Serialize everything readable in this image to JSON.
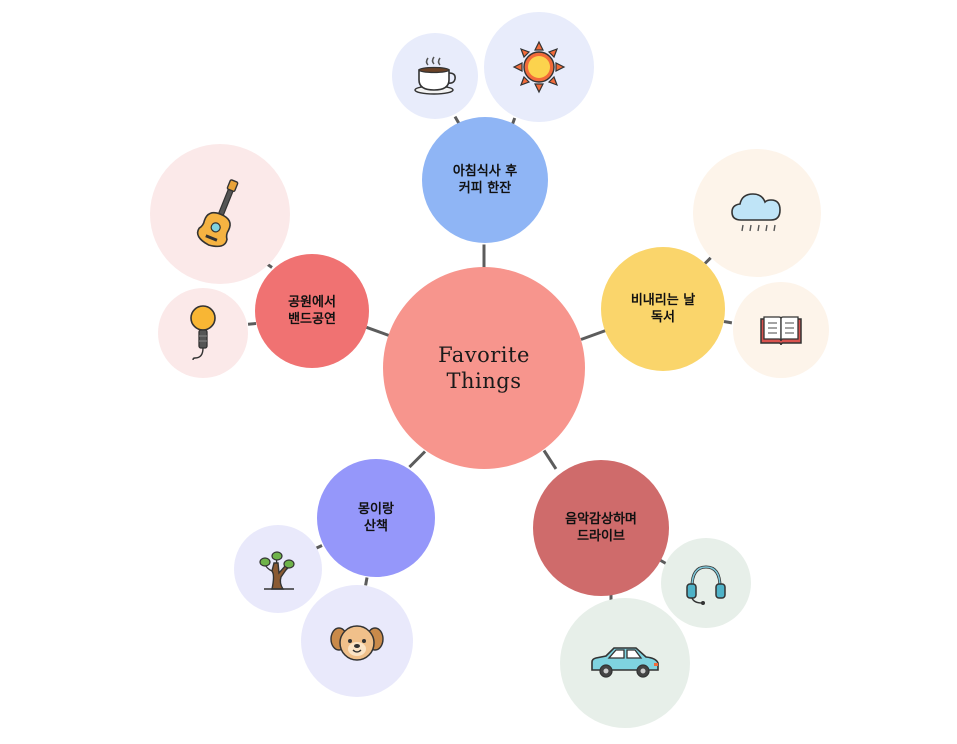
{
  "center": {
    "line1": "Favorite",
    "line2": "Things"
  },
  "topics": [
    {
      "id": "coffee",
      "line1": "아침식사 후",
      "line2": "커피 한잔",
      "icons": [
        "coffee-cup-icon",
        "sun-icon"
      ]
    },
    {
      "id": "rain",
      "line1": "비내리는 날",
      "line2": "독서",
      "icons": [
        "rain-cloud-icon",
        "open-book-icon"
      ]
    },
    {
      "id": "drive",
      "line1": "음악감상하며",
      "line2": "드라이브",
      "icons": [
        "headphones-icon",
        "car-icon"
      ]
    },
    {
      "id": "walk",
      "line1": "몽이랑",
      "line2": "산책",
      "icons": [
        "tree-icon",
        "puppy-icon"
      ]
    },
    {
      "id": "band",
      "line1": "공원에서",
      "line2": "밴드공연",
      "icons": [
        "guitar-icon",
        "microphone-icon"
      ]
    }
  ],
  "colors": {
    "center": "#f7958d",
    "coffee": "#8fb5f5",
    "rain": "#fad56b",
    "drive": "#cf6b6b",
    "walk": "#9597fa",
    "band": "#f07272",
    "connector": "#5c5c5c"
  }
}
